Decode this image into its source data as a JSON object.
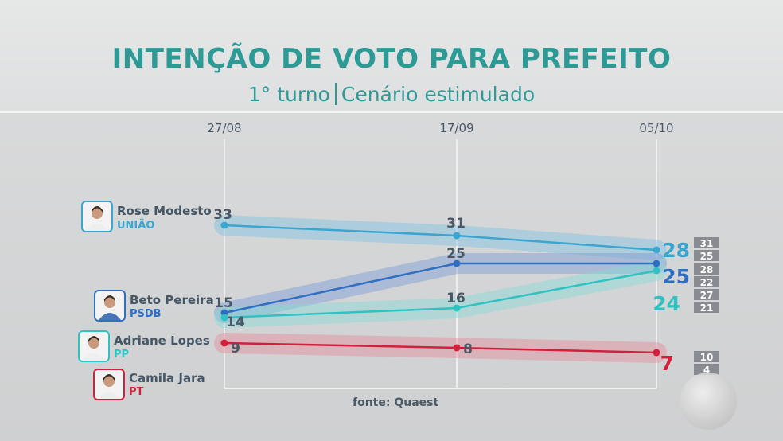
{
  "title": "INTENÇÃO DE VOTO PARA PREFEITO",
  "subtitle_left": "1° turno",
  "subtitle_right": "Cenário estimulado",
  "source": "fonte: Quaest",
  "candidates": [
    {
      "name": "Rose Modesto",
      "party": "UNIÃO",
      "color": "#3aa6cf",
      "photo_icon": "rose-modesto-photo-icon"
    },
    {
      "name": "Beto Pereira",
      "party": "PSDB",
      "color": "#2f6fc2",
      "photo_icon": "beto-pereira-photo-icon"
    },
    {
      "name": "Adriane Lopes",
      "party": "PP",
      "color": "#2fc2c2",
      "photo_icon": "adriane-lopes-photo-icon"
    },
    {
      "name": "Camila Jara",
      "party": "PT",
      "color": "#d21f3c",
      "photo_icon": "camila-jara-photo-icon"
    }
  ],
  "chart_data": {
    "type": "line",
    "x": [
      "27/08",
      "17/09",
      "05/10"
    ],
    "series": [
      {
        "name": "Rose Modesto",
        "party": "UNIÃO",
        "color": "#3aa6cf",
        "values": [
          33,
          31,
          28
        ],
        "margin": [
          31,
          25
        ]
      },
      {
        "name": "Beto Pereira",
        "party": "PSDB",
        "color": "#2f6fc2",
        "values": [
          15,
          25,
          25
        ],
        "margin": [
          28,
          22
        ]
      },
      {
        "name": "Adriane Lopes",
        "party": "PP",
        "color": "#2fc2c2",
        "values": [
          14,
          16,
          24
        ],
        "margin": [
          27,
          21
        ]
      },
      {
        "name": "Camila Jara",
        "party": "PT",
        "color": "#d21f3c",
        "values": [
          9,
          8,
          7
        ],
        "margin": [
          10,
          4
        ]
      }
    ],
    "grid": "vertical"
  }
}
